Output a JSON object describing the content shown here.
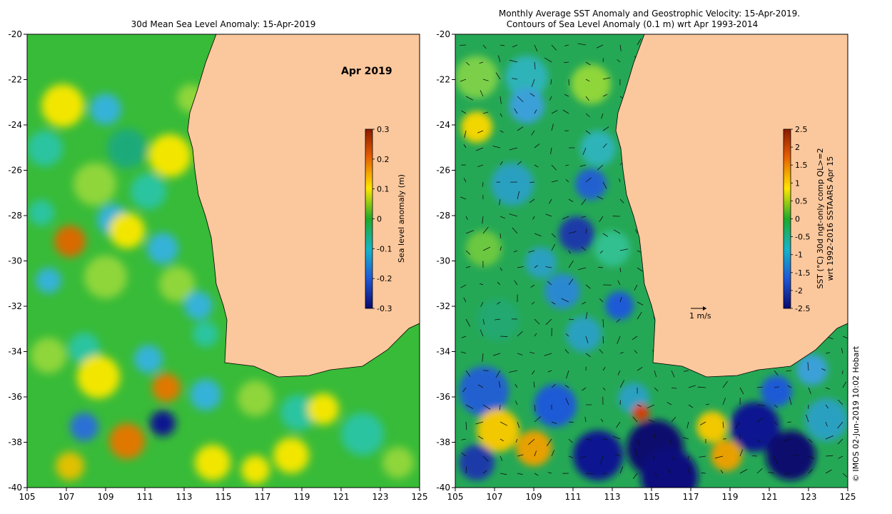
{
  "left_panel": {
    "title": "30d Mean Sea Level Anomaly: 15-Apr-2019",
    "month_label": "Apr 2019",
    "colorbar": {
      "label": "Sea level anomaly (m)",
      "ticks": [
        "0.3",
        "0.2",
        "0.1",
        "0",
        "-0.1",
        "-0.2",
        "-0.3"
      ],
      "range": [
        -0.3,
        0.3
      ]
    }
  },
  "right_panel": {
    "title_line1": "Monthly Average SST Anomaly  and Geostrophic Velocity: 15-Apr-2019.",
    "title_line2": "Contours of Sea Level Anomaly (0.1 m) wrt Apr 1993-2014",
    "velocity_scale_label": "1 m/s",
    "colorbar": {
      "label_line1": "SST (°C) 30d ngt-only comp QL>=2",
      "label_line2": "wrt 1992-2016 SSTAARS Apr 15",
      "ticks": [
        "2.5",
        "2",
        "1.5",
        "1",
        "0.5",
        "0",
        "-0.5",
        "-1",
        "-1.5",
        "-2",
        "-2.5"
      ],
      "range": [
        -2.5,
        2.5
      ]
    }
  },
  "axes": {
    "lon_ticks": [
      "105",
      "107",
      "109",
      "111",
      "113",
      "115",
      "117",
      "119",
      "121",
      "123",
      "125"
    ],
    "lat_ticks": [
      "-20",
      "-22",
      "-24",
      "-26",
      "-28",
      "-30",
      "-32",
      "-34",
      "-36",
      "-38",
      "-40"
    ],
    "lon_range": [
      105,
      125
    ],
    "lat_range": [
      -40,
      -20
    ]
  },
  "credit": "© IMOS 02-Jun-2019 10:02 Hobart",
  "colors": {
    "land": "#fbc79c",
    "ocean_sla_base": "#33b833",
    "ocean_sst_base": "#22a855",
    "coast_green": "#3fc03f"
  }
}
